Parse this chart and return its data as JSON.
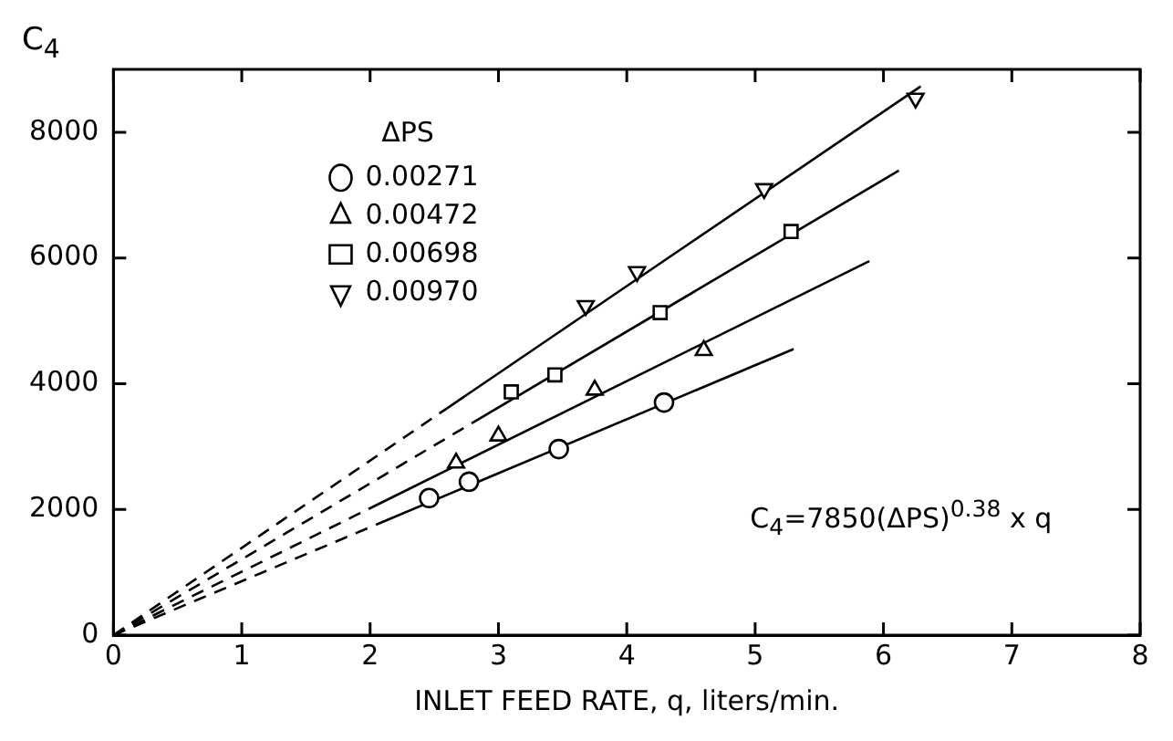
{
  "chart_data": {
    "type": "scatter",
    "xlabel": "INLET FEED RATE, q, liters/min.",
    "ylabel": "C$_{4}$",
    "legend_title": "ΔPS",
    "legend": "top left",
    "grid": false,
    "xlim": [
      0,
      8
    ],
    "xticks": [
      0,
      1,
      2,
      3,
      4,
      5,
      6,
      7,
      8
    ],
    "ylim": [
      0,
      9000
    ],
    "yticks": [
      0,
      2000,
      4000,
      6000,
      8000
    ],
    "annotations": [
      "C$_{4}$=7850(ΔPS)$^{0.38}$ x q"
    ],
    "series": [
      {
        "name": "0.00271",
        "color": "#000000",
        "marker": "circle",
        "x": [
          2.46,
          2.77,
          3.47,
          4.29
        ],
        "values": [
          2180,
          2440,
          2960,
          3700
        ]
      },
      {
        "name": "0.00472",
        "color": "#000000",
        "marker": "triangle",
        "x": [
          2.67,
          3.0,
          3.75,
          4.6
        ],
        "values": [
          2740,
          3170,
          3900,
          4530
        ]
      },
      {
        "name": "0.00698",
        "color": "#000000",
        "marker": "square",
        "x": [
          3.1,
          3.44,
          4.26,
          5.28
        ],
        "values": [
          3870,
          4140,
          5130,
          6420
        ]
      },
      {
        "name": "0.00970",
        "color": "#000000",
        "marker": "triangle-down",
        "x": [
          3.68,
          4.08,
          5.07,
          6.25
        ],
        "values": [
          5240,
          5780,
          7100,
          8540
        ]
      },
      {
        "type": "line",
        "color": "#000000",
        "line_style": "dashed",
        "x": [
          0,
          2.05
        ],
        "values": [
          0,
          1760
        ]
      },
      {
        "type": "line",
        "color": "#000000",
        "line_style": "solid",
        "x": [
          2.05,
          5.3
        ],
        "values": [
          1760,
          4550
        ]
      },
      {
        "type": "line",
        "color": "#000000",
        "line_style": "dashed",
        "x": [
          0,
          2.06
        ],
        "values": [
          0,
          2080
        ]
      },
      {
        "type": "line",
        "color": "#000000",
        "line_style": "solid",
        "x": [
          2.06,
          5.89
        ],
        "values": [
          2080,
          5950
        ]
      },
      {
        "type": "line",
        "color": "#000000",
        "line_style": "dashed",
        "x": [
          0,
          2.8
        ],
        "values": [
          0,
          3380
        ]
      },
      {
        "type": "line",
        "color": "#000000",
        "line_style": "solid",
        "x": [
          2.8,
          6.12
        ],
        "values": [
          3380,
          7390
        ]
      },
      {
        "type": "line",
        "color": "#000000",
        "line_style": "dashed",
        "x": [
          0,
          2.6
        ],
        "values": [
          0,
          3610
        ]
      },
      {
        "type": "line",
        "color": "#000000",
        "line_style": "solid",
        "x": [
          2.6,
          6.29
        ],
        "values": [
          3610,
          8730
        ]
      }
    ]
  }
}
